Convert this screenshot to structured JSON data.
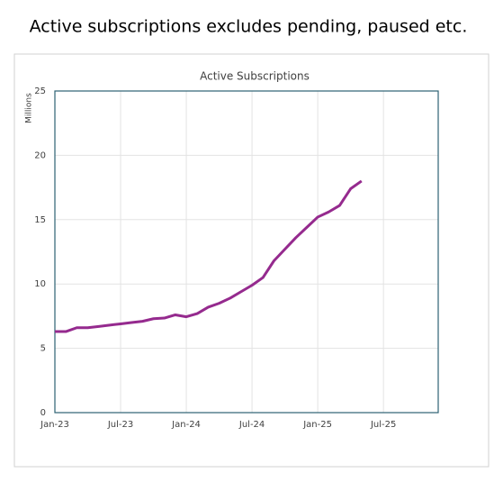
{
  "page_title": "Active subscriptions excludes pending, paused etc.",
  "chart_data": {
    "type": "line",
    "title": "Active Subscriptions",
    "y_label": "Millions",
    "categories": [
      "Jan-23",
      null,
      null,
      null,
      null,
      null,
      "Jul-23",
      null,
      null,
      null,
      null,
      null,
      "Jan-24",
      null,
      null,
      null,
      null,
      null,
      "Jul-24",
      null,
      null,
      null,
      null,
      null,
      "Jan-25",
      null,
      null,
      null,
      null,
      null,
      "Jul-25",
      null,
      null,
      null,
      null,
      null
    ],
    "series": [
      {
        "name": "Active Subscriptions",
        "color": "#952a8e",
        "values": [
          6.3,
          6.3,
          6.6,
          6.6,
          6.7,
          6.8,
          6.9,
          7.0,
          7.1,
          7.3,
          7.35,
          7.6,
          7.45,
          7.7,
          8.2,
          8.5,
          8.9,
          9.4,
          9.9,
          10.5,
          11.8,
          12.7,
          13.6,
          14.4,
          15.2,
          15.6,
          16.1,
          17.4,
          18.0,
          null,
          null,
          null,
          null,
          null,
          null,
          null
        ]
      }
    ],
    "ylim": [
      0,
      25
    ],
    "yticks": [
      0,
      5,
      10,
      15,
      20,
      25
    ],
    "grid": true
  }
}
